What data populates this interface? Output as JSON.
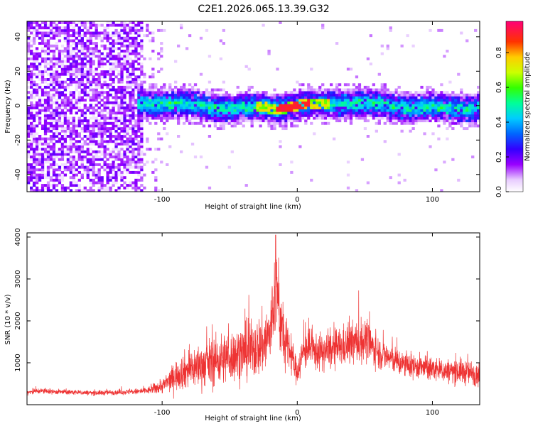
{
  "figure": {
    "title": "C2E1.2026.065.13.39.G32"
  },
  "colors": {
    "snr_line": "#ee3333",
    "axis": "#000000",
    "background": "#ffffff"
  },
  "chart_data": [
    {
      "type": "heatmap",
      "xlabel": "Height of straight line (km)",
      "ylabel": "Frequency (Hz)",
      "xlim": [
        -200,
        135
      ],
      "ylim": [
        -50,
        49
      ],
      "x_ticks": [
        -100,
        0,
        100
      ],
      "y_ticks": [
        -40,
        -20,
        0,
        20,
        40
      ],
      "grid": false,
      "colorbar": {
        "label": "Normalized spectral amplitude",
        "range": [
          0,
          0.98
        ],
        "ticks": [
          0.0,
          0.2,
          0.4,
          0.6,
          0.8
        ],
        "colormap": "rainbow (white, violet, blue, cyan, green, yellow, red, magenta)"
      },
      "features": {
        "broadband_noise_region_x": [
          -200,
          -100
        ],
        "dense_noise_region_x": [
          -200,
          -115
        ],
        "signal_band_start_x": -118,
        "signal_band_center_hz": 0,
        "signal_band_halfwidth_hz": 9,
        "peak_region_x": [
          -15,
          10
        ],
        "peak_amplitude": 0.9
      }
    },
    {
      "type": "line",
      "xlabel": "Height of straight line (km)",
      "ylabel": "SNR (10 * v/v)",
      "xlim": [
        -200,
        135
      ],
      "ylim": [
        0,
        4100
      ],
      "x_ticks": [
        -100,
        0,
        100
      ],
      "y_ticks": [
        1000,
        2000,
        3000,
        4000
      ],
      "grid": false,
      "series": [
        {
          "x": [
            -200,
            -190,
            -180,
            -170,
            -160,
            -150,
            -140,
            -130,
            -120,
            -110,
            -100,
            -95,
            -90,
            -85,
            -80,
            -75,
            -70,
            -65,
            -60,
            -55,
            -50,
            -45,
            -40,
            -35,
            -30,
            -25,
            -20,
            -18,
            -16,
            -14,
            -12,
            -10,
            -8,
            -6,
            -4,
            -2,
            0,
            2,
            5,
            8,
            10,
            15,
            20,
            25,
            30,
            35,
            40,
            45,
            50,
            52,
            55,
            60,
            65,
            70,
            75,
            80,
            90,
            100,
            110,
            120,
            130,
            135
          ],
          "y": [
            300,
            330,
            310,
            300,
            290,
            280,
            290,
            300,
            310,
            340,
            450,
            550,
            700,
            800,
            850,
            900,
            950,
            1000,
            1050,
            1100,
            1150,
            1200,
            1250,
            1300,
            1350,
            1450,
            1700,
            2200,
            2900,
            2500,
            1900,
            1500,
            1400,
            1300,
            1200,
            900,
            800,
            1000,
            1300,
            1350,
            1300,
            1250,
            1250,
            1300,
            1350,
            1400,
            1450,
            1500,
            1550,
            1500,
            1400,
            1250,
            1150,
            1100,
            1000,
            950,
            900,
            850,
            800,
            800,
            750,
            750
          ],
          "noise_amplitude": [
            60,
            70,
            60,
            60,
            60,
            60,
            60,
            60,
            70,
            90,
            180,
            250,
            350,
            420,
            480,
            500,
            520,
            560,
            600,
            600,
            600,
            620,
            650,
            680,
            700,
            750,
            900,
            1000,
            1100,
            1000,
            900,
            700,
            600,
            500,
            450,
            350,
            300,
            400,
            450,
            450,
            450,
            430,
            430,
            450,
            470,
            480,
            500,
            520,
            500,
            480,
            420,
            380,
            350,
            330,
            320,
            300,
            290,
            280,
            280,
            300,
            300,
            300
          ],
          "max_value": 4050,
          "max_at_x": -16
        }
      ]
    }
  ]
}
